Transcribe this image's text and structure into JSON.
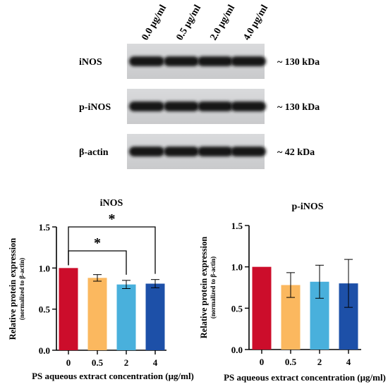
{
  "blot": {
    "lane_labels": [
      "0.0 μg/ml",
      "0.5 μg/ml",
      "2.0 μg/ml",
      "4.0 μg/ml"
    ],
    "rows": [
      {
        "protein": "iNOS",
        "size": "~ 130 kDa"
      },
      {
        "protein": "p-iNOS",
        "size": "~ 130 kDa"
      },
      {
        "protein": "β-actin",
        "size": "~ 42 kDa"
      }
    ]
  },
  "chart_data": [
    {
      "type": "bar",
      "title": "iNOS",
      "xlabel": "PS aqueous extract concentration (μg/ml)",
      "ylabel": "Relative protein expression",
      "ylabel_sub": "(normalized to β-actin)",
      "categories": [
        "0",
        "0.5",
        "2",
        "4"
      ],
      "values": [
        1.0,
        0.88,
        0.8,
        0.81
      ],
      "errors": [
        0.0,
        0.04,
        0.05,
        0.05
      ],
      "colors": [
        "#cc0d2b",
        "#fbb85f",
        "#49b0dc",
        "#1d50a8"
      ],
      "ylim": [
        0,
        1.5
      ],
      "yticks": [
        "0.0",
        "0.5",
        "1.0",
        "1.5"
      ],
      "significance": [
        {
          "from": "0",
          "to": "2",
          "label": "*"
        },
        {
          "from": "0",
          "to": "4",
          "label": "*"
        }
      ]
    },
    {
      "type": "bar",
      "title": "p-iNOS",
      "xlabel": "PS aqueous extract concentration (μg/ml)",
      "ylabel": "Relative protein expression",
      "ylabel_sub": "(normalized to β-actin)",
      "categories": [
        "0",
        "0.5",
        "2",
        "4"
      ],
      "values": [
        1.0,
        0.78,
        0.82,
        0.8
      ],
      "errors": [
        0.0,
        0.15,
        0.2,
        0.29
      ],
      "colors": [
        "#cc0d2b",
        "#fbb85f",
        "#49b0dc",
        "#1d50a8"
      ],
      "ylim": [
        0,
        1.5
      ],
      "yticks": [
        "0.0",
        "0.5",
        "1.0",
        "1.5"
      ],
      "significance": []
    }
  ]
}
